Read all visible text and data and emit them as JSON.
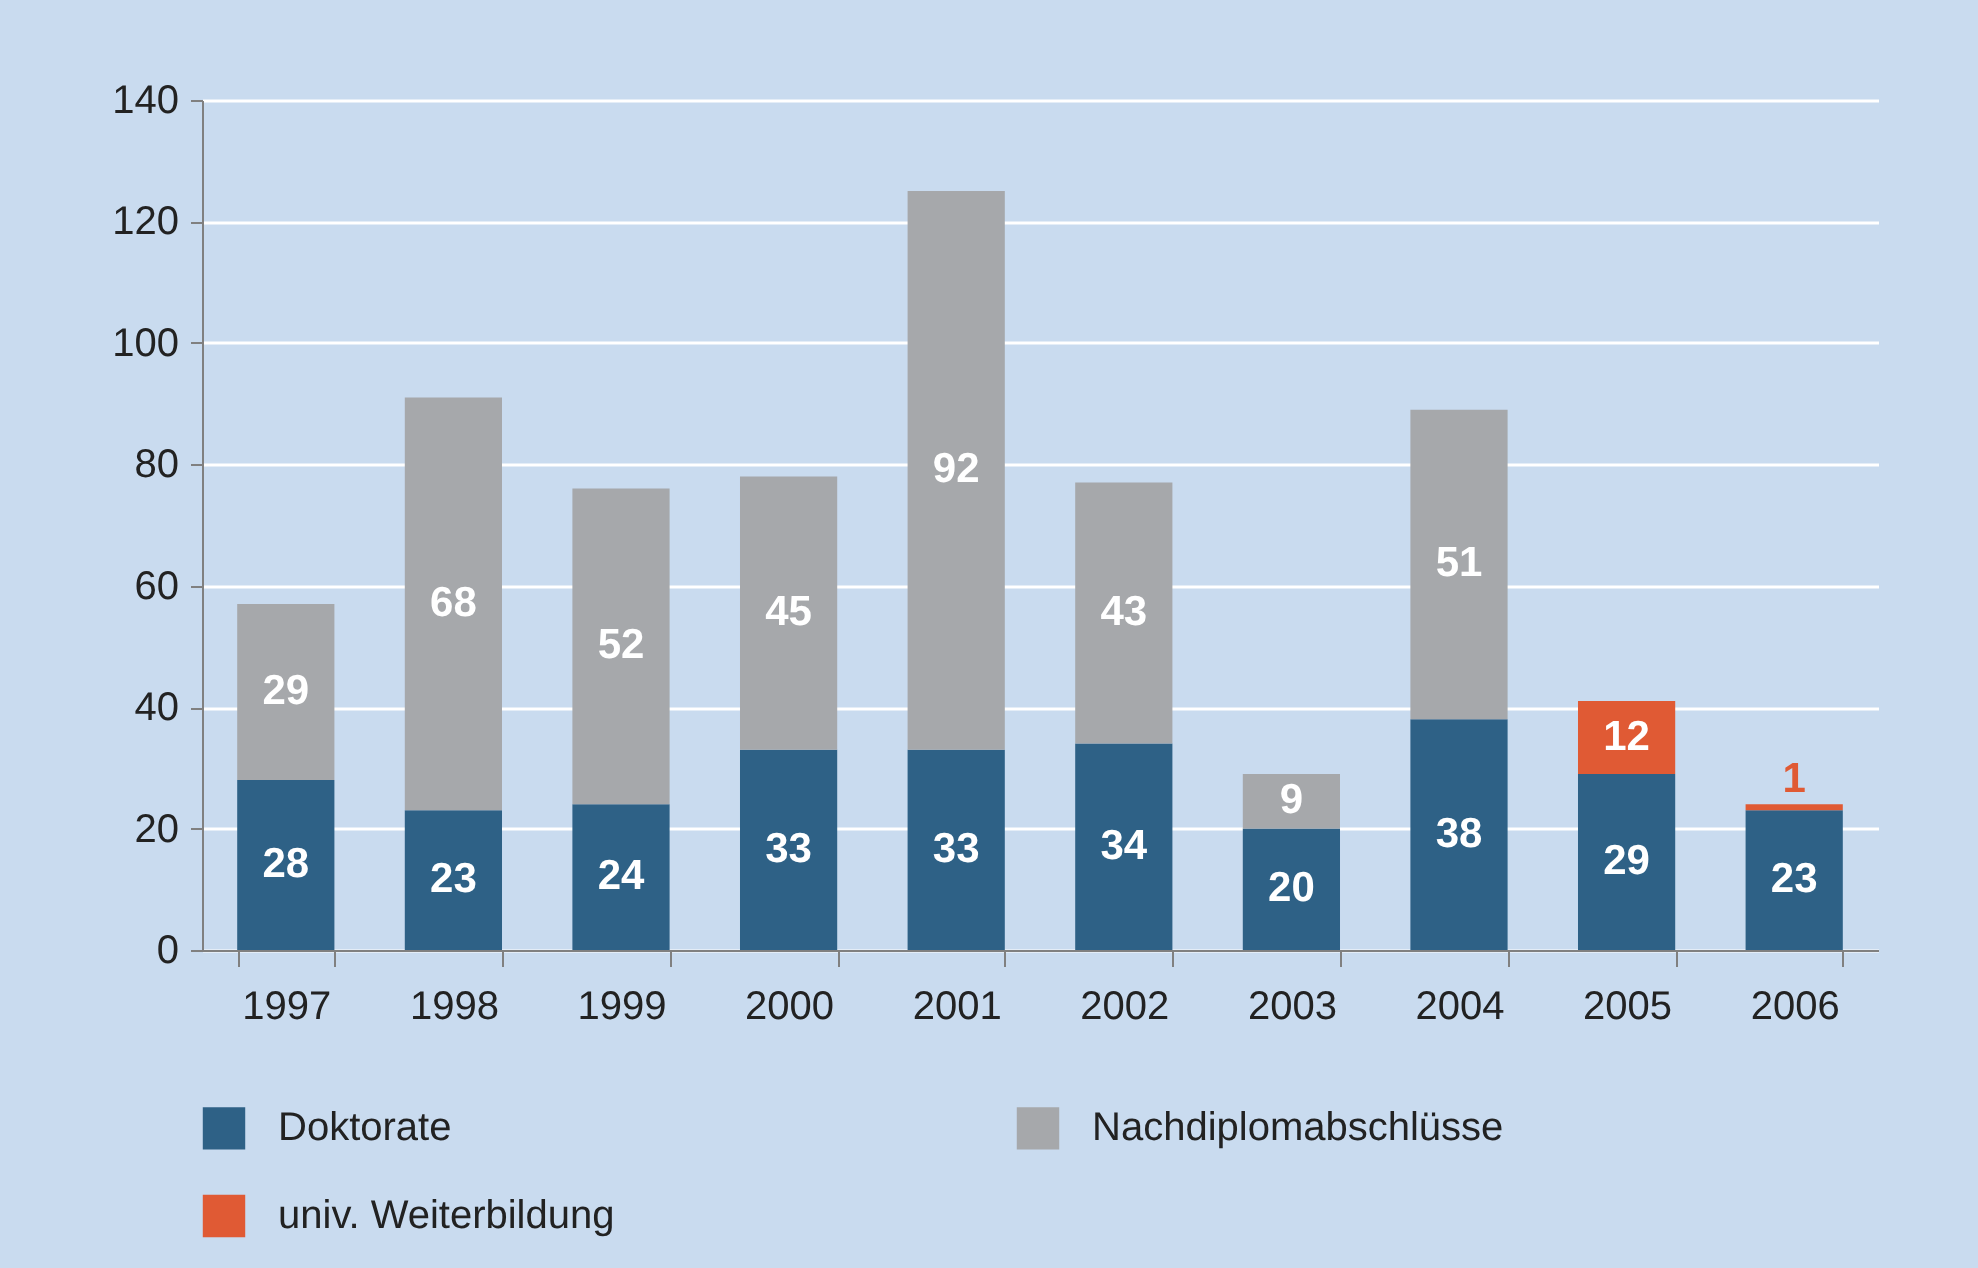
{
  "chart_data": {
    "type": "bar",
    "stacked": true,
    "data_labels": true,
    "categories": [
      "1997",
      "1998",
      "1999",
      "2000",
      "2001",
      "2002",
      "2003",
      "2004",
      "2005",
      "2006"
    ],
    "series": [
      {
        "name": "Doktorate",
        "color": "#2e6186",
        "values": [
          28,
          23,
          24,
          33,
          33,
          34,
          20,
          38,
          29,
          23
        ]
      },
      {
        "name": "Nachdiplomabschlüsse",
        "color": "#a6a8ab",
        "values": [
          29,
          68,
          52,
          45,
          92,
          43,
          9,
          51,
          null,
          null
        ]
      },
      {
        "name": "univ. Weiterbildung",
        "color": "#e05a34",
        "values": [
          null,
          null,
          null,
          null,
          null,
          null,
          null,
          null,
          12,
          1
        ]
      }
    ],
    "ylim": [
      0,
      140
    ],
    "yticks": [
      0,
      20,
      40,
      60,
      80,
      100,
      120,
      140
    ],
    "grid": "y",
    "legend": "bottom"
  }
}
